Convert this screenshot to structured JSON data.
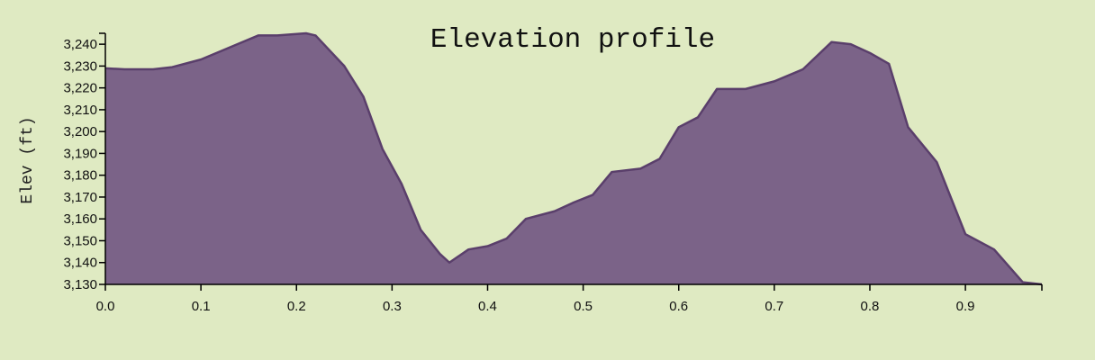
{
  "chart_data": {
    "type": "area",
    "title": "Elevation profile",
    "xlabel": "",
    "ylabel": "Elev (ft)",
    "xlim": [
      0,
      0.98
    ],
    "ylim": [
      3130,
      3245
    ],
    "x_ticks": [
      0.0,
      0.1,
      0.2,
      0.3,
      0.4,
      0.5,
      0.6,
      0.7,
      0.8,
      0.9
    ],
    "x_tick_labels": [
      "0.0",
      "0.1",
      "0.2",
      "0.3",
      "0.4",
      "0.5",
      "0.6",
      "0.7",
      "0.8",
      "0.9"
    ],
    "y_ticks": [
      3130,
      3140,
      3150,
      3160,
      3170,
      3180,
      3190,
      3200,
      3210,
      3220,
      3230,
      3240
    ],
    "y_tick_labels": [
      "3,130",
      "3,140",
      "3,150",
      "3,160",
      "3,170",
      "3,180",
      "3,190",
      "3,200",
      "3,210",
      "3,220",
      "3,230",
      "3,240"
    ],
    "grid": false,
    "legend": "none",
    "colors": {
      "fill": "#7b6388",
      "stroke": "#5a3f6b",
      "background": "#dfeac2"
    },
    "series": [
      {
        "x": [
          0.0,
          0.02,
          0.05,
          0.07,
          0.1,
          0.13,
          0.16,
          0.18,
          0.21,
          0.22,
          0.25,
          0.27,
          0.29,
          0.31,
          0.33,
          0.35,
          0.36,
          0.38,
          0.4,
          0.42,
          0.44,
          0.47,
          0.49,
          0.51,
          0.53,
          0.56,
          0.58,
          0.6,
          0.62,
          0.64,
          0.67,
          0.7,
          0.73,
          0.76,
          0.78,
          0.8,
          0.82,
          0.84,
          0.87,
          0.9,
          0.93,
          0.96,
          0.98
        ],
        "y": [
          3229,
          3228.5,
          3228.5,
          3229.5,
          3233,
          3238.5,
          3244,
          3244,
          3245,
          3244,
          3230,
          3216,
          3192,
          3176,
          3155,
          3144,
          3140,
          3146,
          3147.5,
          3151,
          3160,
          3163.5,
          3167.5,
          3171,
          3181.5,
          3183,
          3187.5,
          3202,
          3206.5,
          3219.5,
          3219.5,
          3223,
          3228.5,
          3241,
          3240,
          3236,
          3231,
          3202,
          3186,
          3153,
          3146,
          3131,
          3130
        ]
      }
    ]
  }
}
